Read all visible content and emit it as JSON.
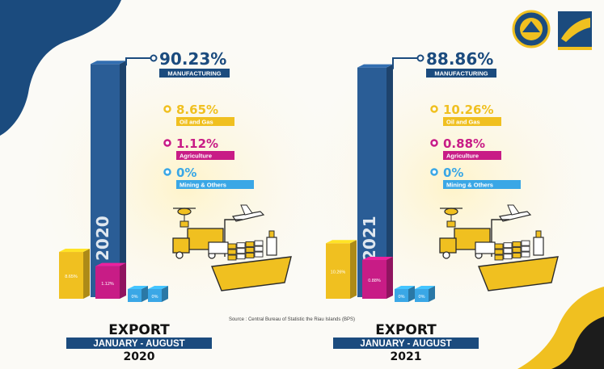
{
  "source": "Source : Central Bureau of Statistic the Riau Islands (BPS)",
  "colors": {
    "navy": "#1b4b7e",
    "manufacturing": "#2a5d96",
    "oil_gas": "#f0c020",
    "agriculture": "#c81c86",
    "mining": "#3aa7e6",
    "dark": "#1c1c1c"
  },
  "logos": [
    "bp-batam-round-logo",
    "bp-batam-logo"
  ],
  "chart_data": [
    {
      "type": "bar",
      "year": "2020",
      "title": "EXPORT",
      "subtitle": "JANUARY - AUGUST",
      "categories": [
        "Manufacturing",
        "Oil and Gas",
        "Agriculture",
        "Mining & Others"
      ],
      "category_labels": [
        "MANUFACTURING",
        "Oil and Gas",
        "Agriculture",
        "Mining & Others"
      ],
      "values": [
        90.23,
        8.65,
        1.12,
        0
      ],
      "value_labels": [
        "90.23%",
        "8.65%",
        "1.12%",
        "0%"
      ],
      "bar_labels": [
        "",
        "8.65%",
        "1.12%",
        "0%"
      ],
      "unit": "%"
    },
    {
      "type": "bar",
      "year": "2021",
      "title": "EXPORT",
      "subtitle": "JANUARY - AUGUST",
      "categories": [
        "Manufacturing",
        "Oil and Gas",
        "Agriculture",
        "Mining & Others"
      ],
      "category_labels": [
        "MANUFACTURING",
        "Oil and Gas",
        "Agriculture",
        "Mining & Others"
      ],
      "values": [
        88.86,
        10.26,
        0.88,
        0
      ],
      "value_labels": [
        "88.86%",
        "10.26%",
        "0.88%",
        "0%"
      ],
      "bar_labels": [
        "",
        "10.26%",
        "0.88%",
        "0%"
      ],
      "unit": "%"
    }
  ]
}
